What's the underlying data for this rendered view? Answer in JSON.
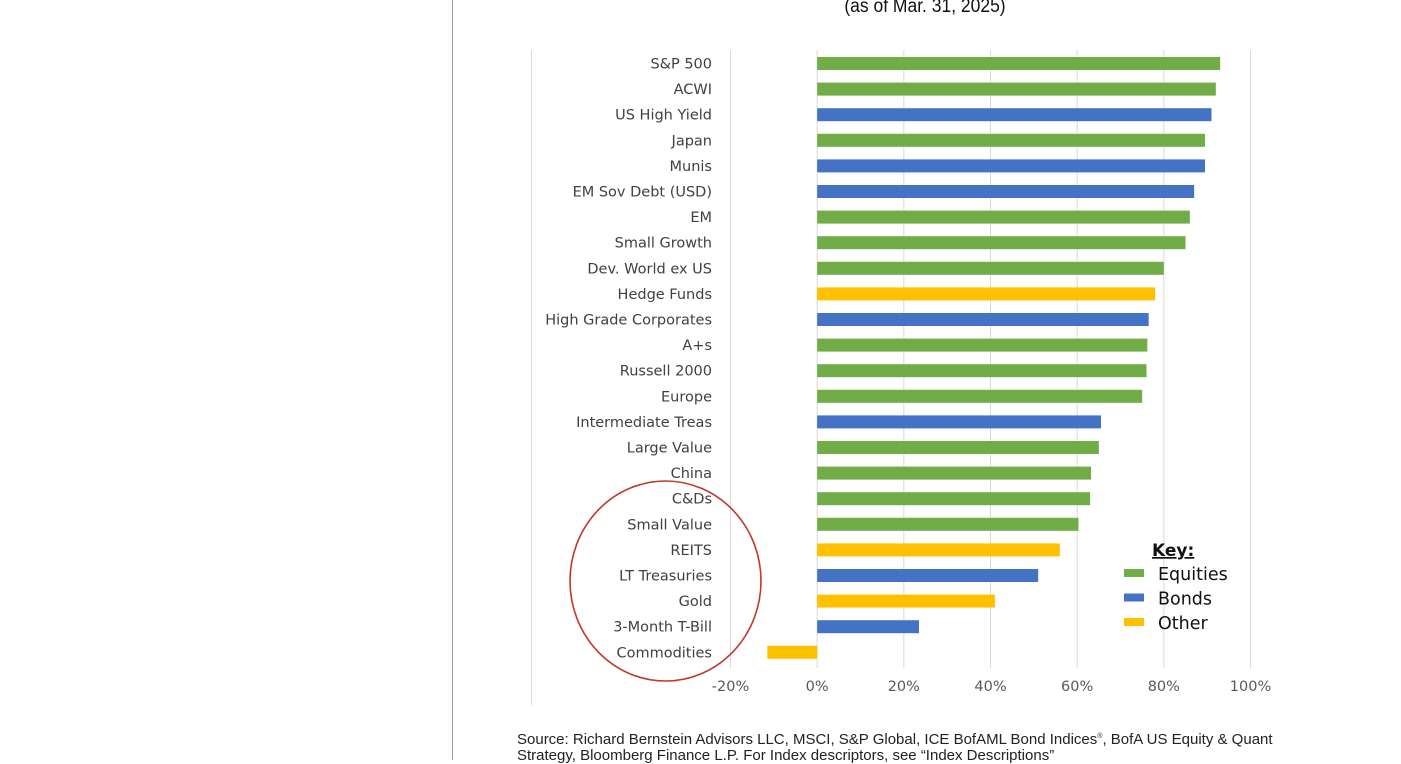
{
  "subtitle": "(as of Mar. 31, 2025)",
  "source": {
    "text_before_mark": "Source: Richard Bernstein Advisors LLC, MSCI, S&P Global, ICE BofAML Bond Indices",
    "registered_mark": "®",
    "text_after_mark": ", BofA US Equity & Quant Strategy, Bloomberg Finance L.P.  For Index descriptors, see “Index Descriptions”"
  },
  "colors": {
    "equities": "#70ad47",
    "bonds": "#4472c4",
    "other": "#ffc000",
    "grid": "#d9d9d9",
    "circle": "#c0392b"
  },
  "chart_data": {
    "type": "bar",
    "orientation": "horizontal",
    "title": "",
    "xlabel": "",
    "ylabel": "",
    "xlim": [
      -0.2,
      1.0
    ],
    "x_ticks": [
      -0.2,
      0,
      0.2,
      0.4,
      0.6,
      0.8,
      1.0
    ],
    "x_tick_labels": [
      "-20%",
      "0%",
      "20%",
      "40%",
      "60%",
      "80%",
      "100%"
    ],
    "grid": true,
    "legend_position": "bottom-right",
    "legend_title": "Key:",
    "legend": [
      {
        "label": "Equities",
        "group": "equities"
      },
      {
        "label": "Bonds",
        "group": "bonds"
      },
      {
        "label": "Other",
        "group": "other"
      }
    ],
    "categories": [
      "S&P 500",
      "ACWI",
      "US High Yield",
      "Japan",
      "Munis",
      "EM Sov Debt (USD)",
      "EM",
      "Small Growth",
      "Dev. World ex US",
      "Hedge Funds",
      "High Grade Corporates",
      "A+s",
      "Russell 2000",
      "Europe",
      "Intermediate Treas",
      "Large Value",
      "China",
      "C&Ds",
      "Small Value",
      "REITS",
      "LT Treasuries",
      "Gold",
      "3-Month T-Bill",
      "Commodities"
    ],
    "values": [
      0.93,
      0.92,
      0.91,
      0.895,
      0.895,
      0.87,
      0.86,
      0.85,
      0.8,
      0.78,
      0.765,
      0.762,
      0.76,
      0.75,
      0.655,
      0.65,
      0.632,
      0.63,
      0.603,
      0.56,
      0.51,
      0.41,
      0.235,
      -0.115
    ],
    "groups": [
      "equities",
      "equities",
      "bonds",
      "equities",
      "bonds",
      "bonds",
      "equities",
      "equities",
      "equities",
      "other",
      "bonds",
      "equities",
      "equities",
      "equities",
      "bonds",
      "equities",
      "equities",
      "equities",
      "equities",
      "other",
      "bonds",
      "other",
      "bonds",
      "other"
    ],
    "highlighted_categories": [
      "C&Ds",
      "Small Value",
      "REITS",
      "LT Treasuries",
      "Gold",
      "3-Month T-Bill",
      "Commodities"
    ]
  }
}
